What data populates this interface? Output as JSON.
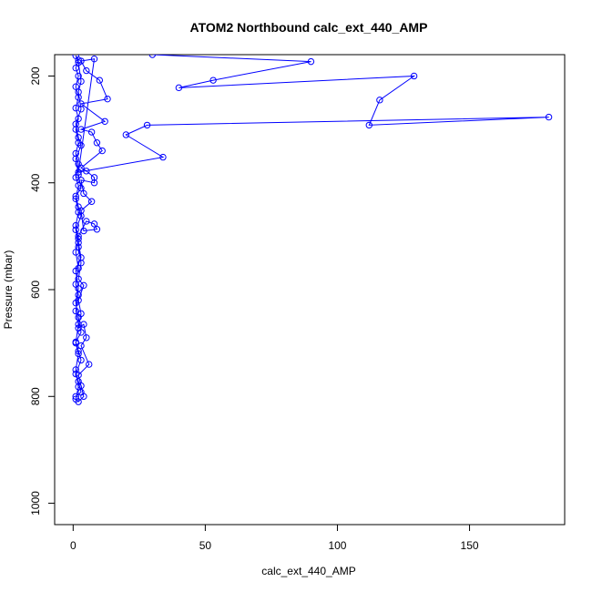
{
  "chart_data": {
    "type": "line",
    "title": "ATOM2 Northbound calc_ext_440_AMP",
    "xlabel": "calc_ext_440_AMP",
    "ylabel": "Pressure (mbar)",
    "x_ticks": [
      0,
      50,
      100,
      150
    ],
    "y_ticks": [
      200,
      400,
      600,
      800,
      1000
    ],
    "xlim": [
      -7,
      186
    ],
    "ylim": [
      1040,
      160
    ],
    "y_inverted": true,
    "line_color": "#0000ff",
    "marker": "open-circle",
    "series": [
      {
        "points": [
          [
            30,
            160
          ],
          [
            90,
            173
          ],
          [
            53,
            208
          ],
          [
            40,
            222
          ],
          [
            129,
            200
          ],
          [
            116,
            245
          ],
          [
            112,
            292
          ],
          [
            180,
            277
          ],
          [
            28,
            292
          ],
          [
            20,
            310
          ],
          [
            34,
            352
          ],
          [
            2,
            380
          ],
          [
            8,
            168
          ],
          [
            3,
            172
          ],
          [
            5,
            190
          ],
          [
            10,
            208
          ],
          [
            13,
            243
          ],
          [
            3,
            252
          ],
          [
            12,
            285
          ],
          [
            3,
            300
          ],
          [
            7,
            305
          ],
          [
            9,
            325
          ],
          [
            11,
            340
          ],
          [
            3,
            372
          ],
          [
            5,
            378
          ],
          [
            8,
            390
          ],
          [
            8,
            400
          ],
          [
            3,
            395
          ],
          [
            4,
            420
          ],
          [
            7,
            435
          ],
          [
            3,
            452
          ],
          [
            4,
            490
          ],
          [
            9,
            487
          ],
          [
            8,
            477
          ],
          [
            5,
            472
          ],
          [
            2,
            500
          ],
          [
            2,
            520
          ],
          [
            3,
            550
          ],
          [
            2,
            580
          ],
          [
            4,
            592
          ],
          [
            2,
            620
          ],
          [
            3,
            645
          ],
          [
            2,
            672
          ],
          [
            4,
            665
          ],
          [
            5,
            690
          ],
          [
            3,
            705
          ],
          [
            6,
            740
          ],
          [
            2,
            760
          ],
          [
            3,
            780
          ],
          [
            4,
            800
          ],
          [
            2,
            810
          ],
          [
            1,
            805
          ],
          [
            2,
            782
          ],
          [
            1,
            750
          ],
          [
            2,
            720
          ],
          [
            1,
            700
          ],
          [
            2,
            665
          ],
          [
            1,
            640
          ],
          [
            2,
            610
          ],
          [
            1,
            590
          ],
          [
            2,
            560
          ],
          [
            1,
            530
          ],
          [
            2,
            505
          ],
          [
            1,
            480
          ],
          [
            2,
            455
          ],
          [
            1,
            430
          ],
          [
            2,
            405
          ],
          [
            1,
            390
          ],
          [
            2,
            365
          ],
          [
            1,
            345
          ],
          [
            2,
            325
          ],
          [
            1,
            300
          ],
          [
            2,
            280
          ],
          [
            1,
            260
          ],
          [
            2,
            240
          ],
          [
            1,
            220
          ],
          [
            2,
            200
          ],
          [
            1,
            185
          ],
          [
            2,
            170
          ],
          [
            1,
            162
          ],
          [
            2,
            175
          ],
          [
            3,
            210
          ],
          [
            2,
            230
          ],
          [
            3,
            262
          ],
          [
            1,
            290
          ],
          [
            2,
            315
          ],
          [
            3,
            330
          ],
          [
            1,
            355
          ],
          [
            2,
            385
          ],
          [
            3,
            410
          ],
          [
            1,
            425
          ],
          [
            2,
            445
          ],
          [
            3,
            462
          ],
          [
            1,
            488
          ],
          [
            2,
            512
          ],
          [
            3,
            540
          ],
          [
            1,
            565
          ],
          [
            2,
            598
          ],
          [
            1,
            625
          ],
          [
            2,
            652
          ],
          [
            3,
            680
          ],
          [
            1,
            698
          ],
          [
            2,
            715
          ],
          [
            3,
            732
          ],
          [
            1,
            758
          ],
          [
            2,
            772
          ],
          [
            3,
            792
          ],
          [
            1,
            800
          ]
        ]
      }
    ]
  }
}
